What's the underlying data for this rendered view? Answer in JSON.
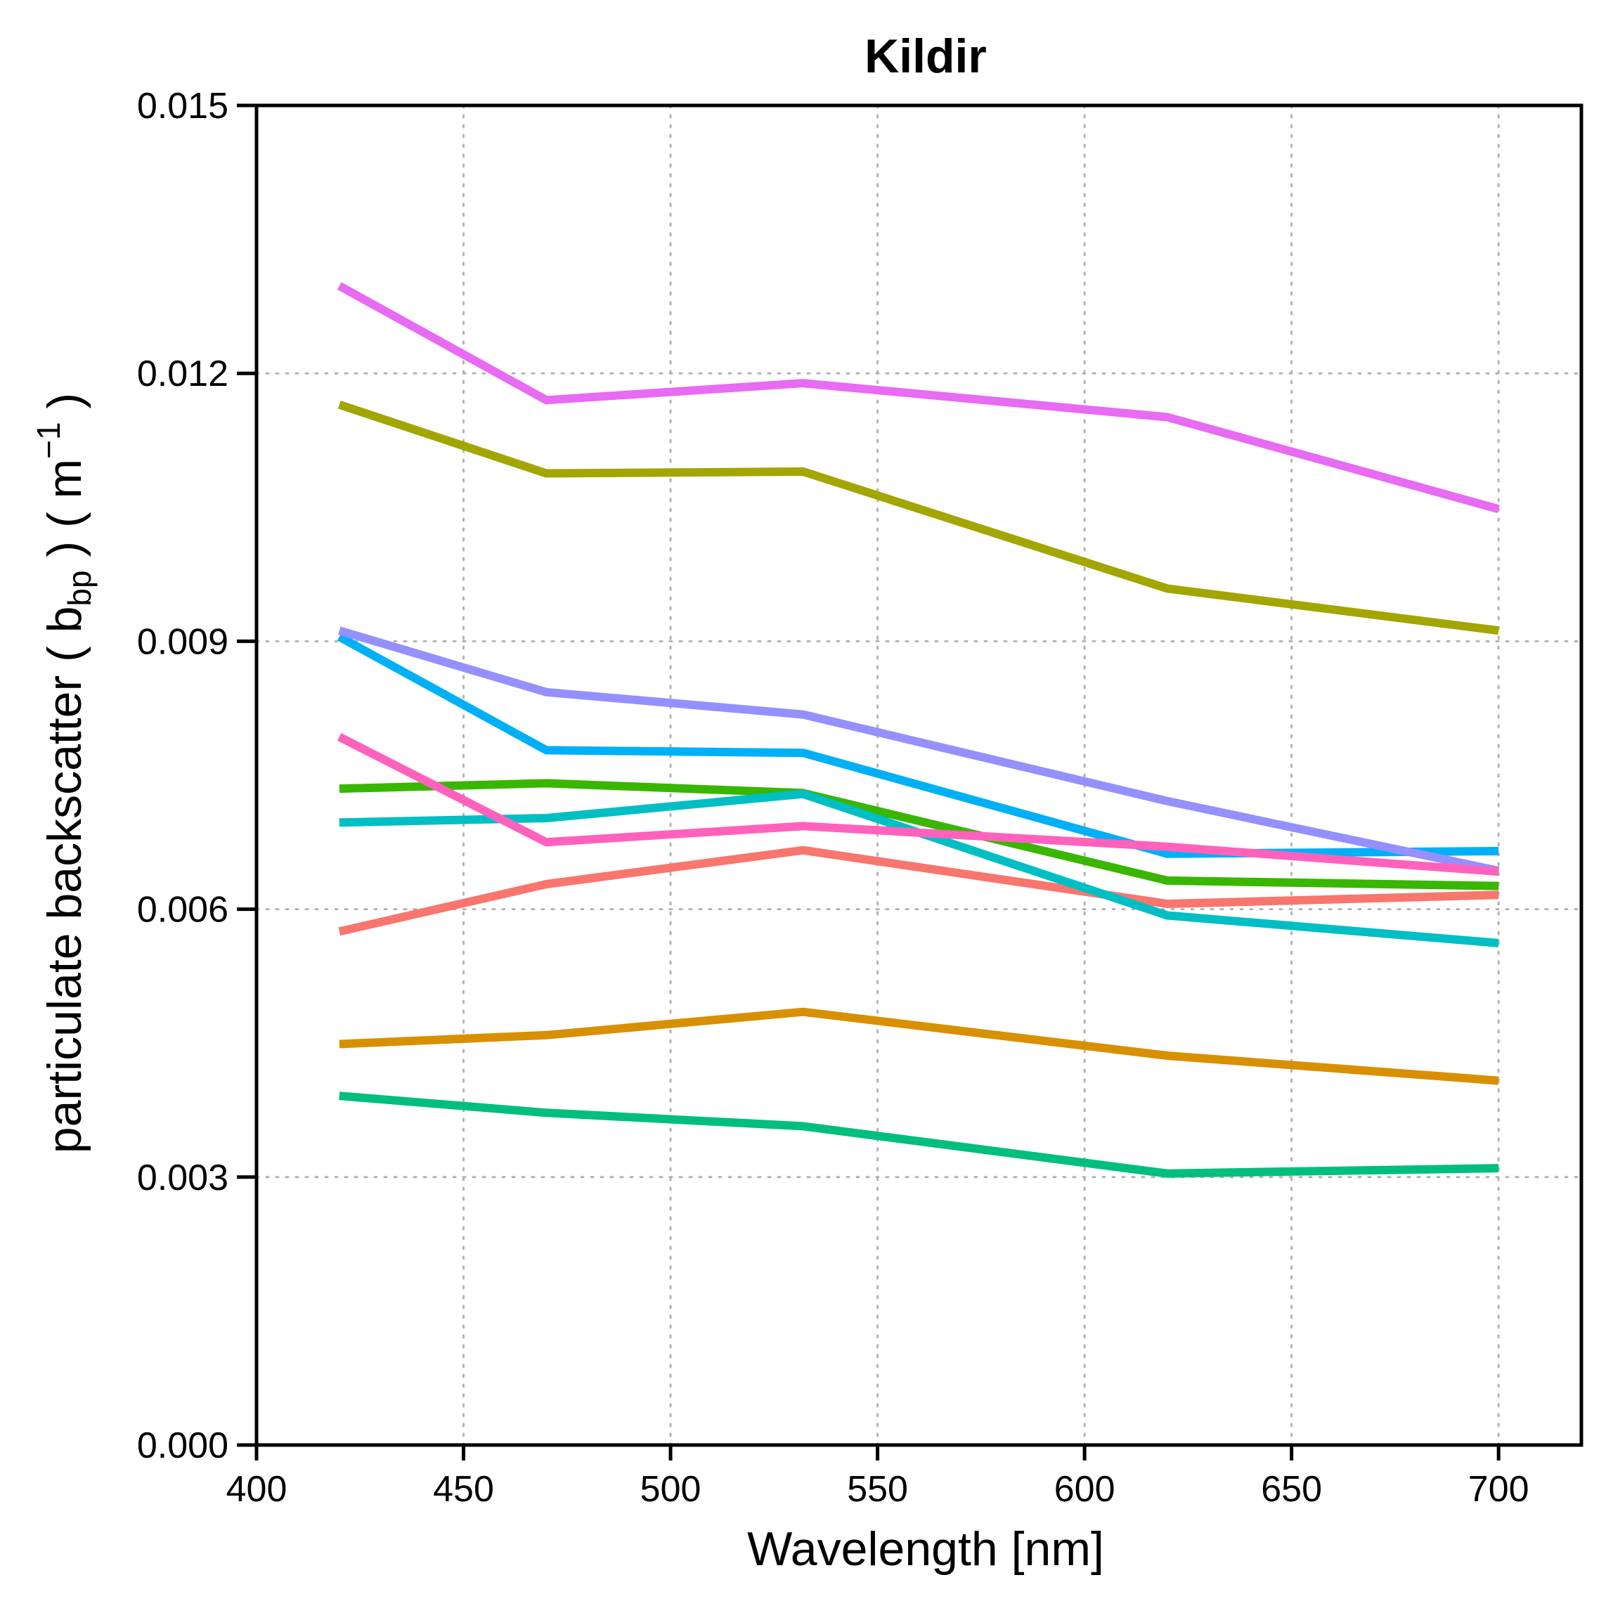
{
  "chart_data": {
    "type": "line",
    "title": "Kildir",
    "xlabel": "Wavelength [nm]",
    "ylabel": {
      "prefix": "particulate backscatter (  b",
      "subscript": "bp",
      "middle": "  ) ( m",
      "superscript": "−1",
      "suffix": " )"
    },
    "xlim": [
      400,
      720
    ],
    "ylim": [
      0,
      0.015
    ],
    "xticks": [
      400,
      450,
      500,
      550,
      600,
      650,
      700
    ],
    "yticks": [
      0,
      0.003,
      0.006,
      0.009,
      0.012,
      0.015
    ],
    "xtick_labels": [
      "400",
      "450",
      "500",
      "550",
      "600",
      "650",
      "700"
    ],
    "ytick_labels": [
      "0.000",
      "0.003",
      "0.006",
      "0.009",
      "0.012",
      "0.015"
    ],
    "grid": true,
    "legend": "none",
    "x": [
      420,
      470,
      532,
      620,
      700
    ],
    "series": [
      {
        "color": "#F8766D",
        "values": [
          0.00575,
          0.00628,
          0.00666,
          0.00606,
          0.00616
        ]
      },
      {
        "color": "#D89000",
        "values": [
          0.00449,
          0.00459,
          0.00485,
          0.00436,
          0.00408
        ]
      },
      {
        "color": "#A3A500",
        "values": [
          0.01165,
          0.01088,
          0.0109,
          0.00959,
          0.00912
        ]
      },
      {
        "color": "#39B600",
        "values": [
          0.00735,
          0.00741,
          0.0073,
          0.00632,
          0.00626
        ]
      },
      {
        "color": "#00BF7D",
        "values": [
          0.00391,
          0.00372,
          0.00357,
          0.00304,
          0.0031
        ]
      },
      {
        "color": "#00BFC4",
        "values": [
          0.00697,
          0.00702,
          0.00729,
          0.00593,
          0.00562
        ]
      },
      {
        "color": "#00B0F6",
        "values": [
          0.00905,
          0.00778,
          0.00775,
          0.00662,
          0.00665
        ]
      },
      {
        "color": "#9590FF",
        "values": [
          0.00912,
          0.00843,
          0.00818,
          0.00721,
          0.00643
        ]
      },
      {
        "color": "#E76BF3",
        "values": [
          0.01298,
          0.0117,
          0.01189,
          0.01151,
          0.01048
        ]
      },
      {
        "color": "#FF62BC",
        "values": [
          0.00793,
          0.00675,
          0.00693,
          0.0067,
          0.00642
        ]
      }
    ]
  }
}
